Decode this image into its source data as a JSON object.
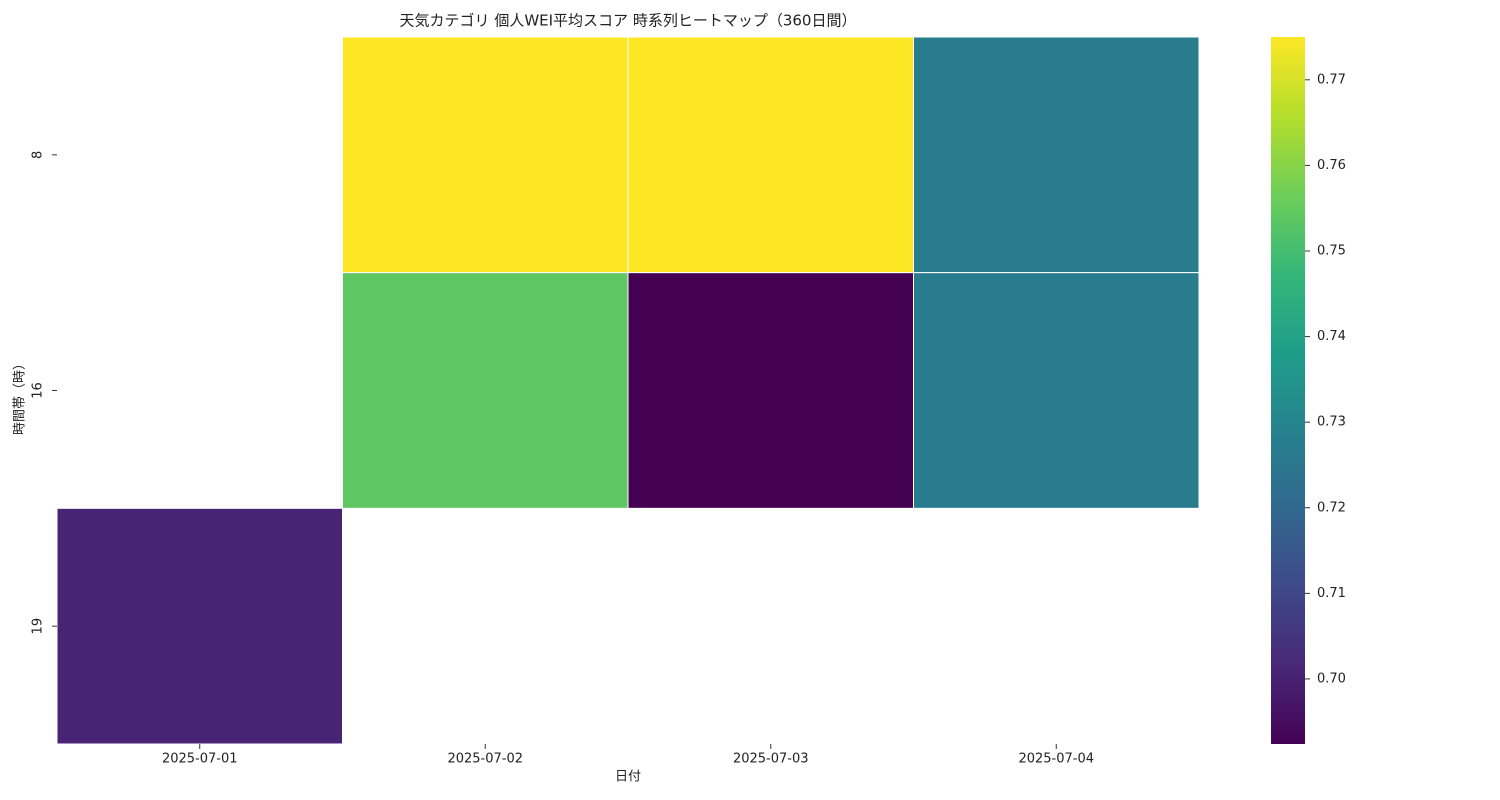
{
  "chart_data": {
    "type": "heatmap",
    "title": "天気カテゴリ 個人WEI平均スコア 時系列ヒートマップ（360日間）",
    "x_label": "日付",
    "y_label": "時間帯（時）",
    "x": [
      "2025-07-01",
      "2025-07-02",
      "2025-07-03",
      "2025-07-04"
    ],
    "y": [
      "8",
      "16",
      "19"
    ],
    "values": [
      [
        null,
        0.775,
        0.775,
        0.727
      ],
      [
        null,
        0.754,
        0.6925,
        0.727
      ],
      [
        0.7007,
        null,
        null,
        null
      ]
    ],
    "colormap": [
      "#440154",
      "#482878",
      "#3e4989",
      "#31688e",
      "#26828e",
      "#1f9e89",
      "#35b779",
      "#6ece58",
      "#b5de2b",
      "#fde725"
    ],
    "clim": [
      0.6924,
      0.775
    ],
    "cticks": [
      0.7,
      0.71,
      0.72,
      0.73,
      0.74,
      0.75,
      0.76,
      0.77
    ],
    "cell_border": "#ffffff"
  }
}
